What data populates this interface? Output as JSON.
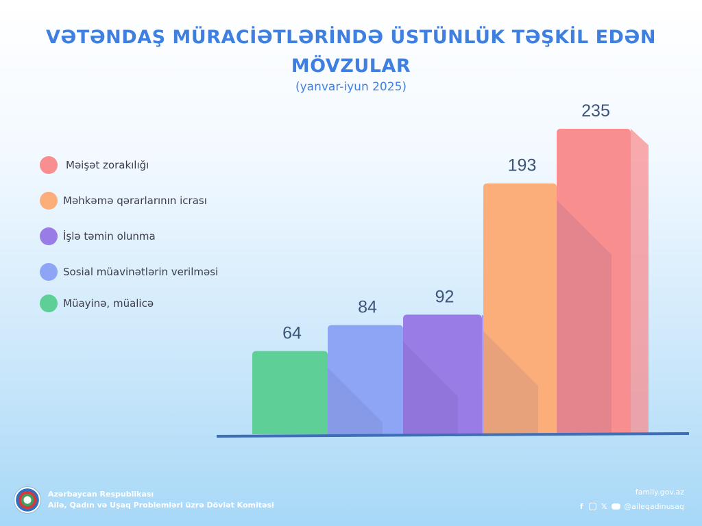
{
  "header": {
    "title_line1": "VƏTƏNDAŞ MÜRACİƏTLƏRİNDƏ ÜSTÜNLÜK TƏŞKİL EDƏN",
    "title_line2": "MÖVZULAR",
    "subtitle": "(yanvar-iyun 2025)"
  },
  "legend": [
    {
      "label": "Məişət zorakılığı",
      "color": "#f88e90"
    },
    {
      "label": "Məhkəmə qərarlarının icrası",
      "color": "#fbae7a"
    },
    {
      "label": "İşlə təmin olunma",
      "color": "#9a7ce6"
    },
    {
      "label": "Sosial müavinətlərin verilməsi",
      "color": "#8ea5f6"
    },
    {
      "label": "Müayinə, müalicə",
      "color": "#5ecf96"
    }
  ],
  "chart_data": {
    "type": "bar",
    "categories": [
      "Müayinə, müalicə",
      "Sosial müavinətlərin verilməsi",
      "İşlə təmin olunma",
      "Məhkəmə qərarlarının icrası",
      "Məişət zorakılığı"
    ],
    "values": [
      64,
      84,
      92,
      193,
      235
    ],
    "colors": [
      "#5ecf96",
      "#8ea5f6",
      "#9a7ce6",
      "#fbae7a",
      "#f88e90"
    ],
    "title": "VƏTƏNDAŞ MÜRACİƏTLƏRİNDƏ ÜSTÜNLÜK TƏŞKİL EDƏN MÖVZULAR",
    "subtitle": "(yanvar-iyun 2025)",
    "data_labels": true,
    "grid": false
  },
  "footer": {
    "org_line1": "Azərbaycan Respublikası",
    "org_line2": "Ailə, Qadın və Uşaq Problemləri üzrə Dövlət Komitəsi",
    "website": "family.gov.az",
    "social_handle": "@aileqadinusaq",
    "icons": [
      "facebook-icon",
      "instagram-icon",
      "x-icon",
      "youtube-icon"
    ]
  }
}
